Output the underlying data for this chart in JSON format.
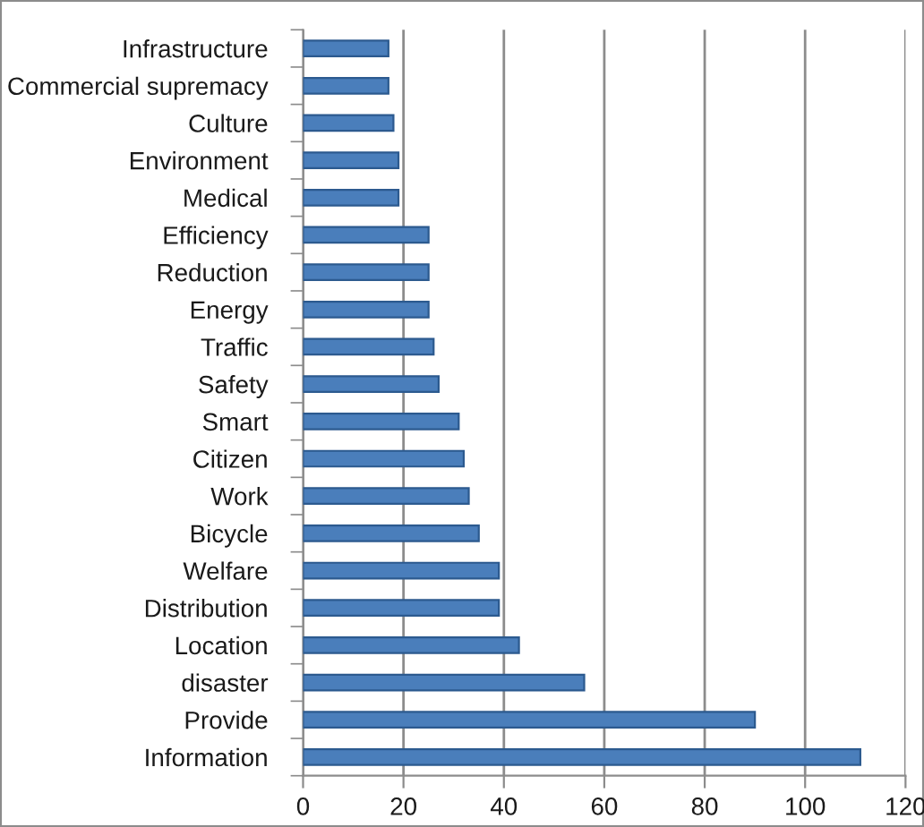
{
  "chart_data": {
    "type": "bar",
    "orientation": "horizontal",
    "categories": [
      "Infrastructure",
      "Commercial supremacy",
      "Culture",
      "Environment",
      "Medical",
      "Efficiency",
      "Reduction",
      "Energy",
      "Traffic",
      "Safety",
      "Smart",
      "Citizen",
      "Work",
      "Bicycle",
      "Welfare",
      "Distribution",
      "Location",
      "disaster",
      "Provide",
      "Information"
    ],
    "values": [
      17,
      17,
      18,
      19,
      19,
      25,
      25,
      25,
      26,
      27,
      31,
      32,
      33,
      35,
      39,
      39,
      43,
      56,
      90,
      111
    ],
    "color": "#4a7ebb",
    "xlim": [
      0,
      120
    ],
    "xticks": [
      0,
      20,
      40,
      60,
      80,
      100,
      120
    ],
    "grid": "x",
    "legend": false
  }
}
